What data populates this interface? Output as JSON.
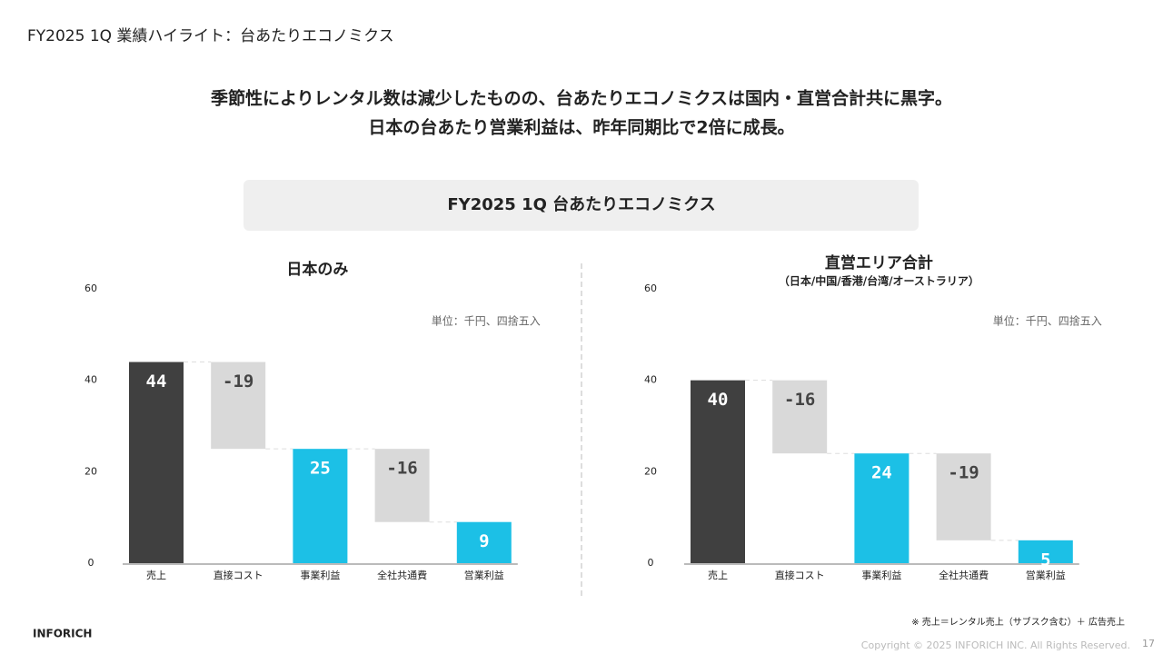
{
  "header": {
    "title": "FY2025 1Q 業績ハイライト：台あたりエコノミクス"
  },
  "headline": [
    "季節性によりレンタル数は減少したものの、台あたりエコノミクスは国内・直営合計共に黒字。",
    "日本の台あたり営業利益は、昨年同期比で2倍に成長。"
  ],
  "section_title": "FY2025 1Q 台あたりエコノミクス",
  "chart_data": [
    {
      "type": "waterfall",
      "title": "日本のみ",
      "note": "単位：千円、四捨五入",
      "categories": [
        "売上",
        "直接コスト",
        "事業利益",
        "全社共通費",
        "営業利益"
      ],
      "values": [
        44,
        -19,
        25,
        -16,
        9
      ],
      "totals": [
        true,
        false,
        true,
        false,
        true
      ],
      "colors": [
        "#404040",
        "#d9d9d9",
        "#1cc0e6",
        "#d9d9d9",
        "#1cc0e6"
      ],
      "ylim": [
        0,
        60
      ],
      "yticks": [
        0,
        20,
        40,
        60
      ]
    },
    {
      "type": "waterfall",
      "title": "直営エリア合計",
      "subtitle": "（日本/中国/香港/台湾/オーストラリア）",
      "note": "単位：千円、四捨五入",
      "categories": [
        "売上",
        "直接コスト",
        "事業利益",
        "全社共通費",
        "営業利益"
      ],
      "values": [
        40,
        -16,
        24,
        -19,
        5
      ],
      "totals": [
        true,
        false,
        true,
        false,
        true
      ],
      "colors": [
        "#404040",
        "#d9d9d9",
        "#1cc0e6",
        "#d9d9d9",
        "#1cc0e6"
      ],
      "ylim": [
        0,
        60
      ],
      "yticks": [
        0,
        20,
        40,
        60
      ]
    }
  ],
  "footer": {
    "company": "INFORICH",
    "footnote": "※ 売上＝レンタル売上（サブスク含む）＋ 広告売上",
    "copyright": "Copyright © 2025 INFORICH INC. All Rights Reserved.",
    "page": "17"
  }
}
